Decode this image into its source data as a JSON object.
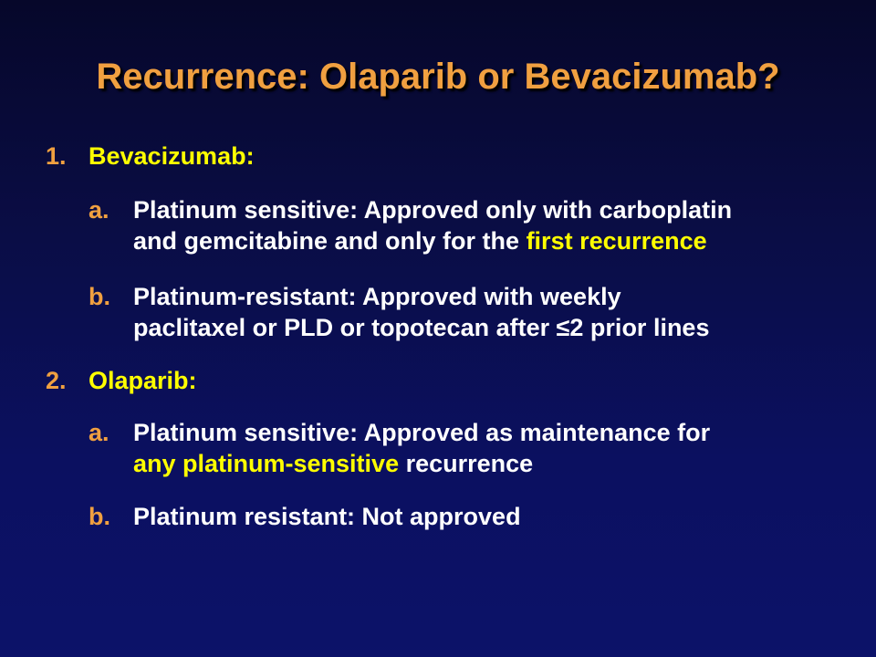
{
  "slide": {
    "title": "Recurrence: Olaparib or Bevacizumab?",
    "colors": {
      "background": "#0b1060",
      "title": "#f0a040",
      "marker": "#f0a040",
      "heading": "#ffff00",
      "body": "#ffffff",
      "highlight": "#ffff00"
    },
    "sections": [
      {
        "number": "1.",
        "heading": "Bevacizumab:",
        "items": [
          {
            "letter": "a.",
            "line1": "Platinum sensitive: Approved only with carboplatin",
            "line2_pre": "and gemcitabine and only for the ",
            "line2_highlight": "first recurrence"
          },
          {
            "letter": "b.",
            "line1": "Platinum-resistant: Approved with weekly",
            "line2": "paclitaxel or PLD or topotecan after ≤2 prior lines"
          }
        ]
      },
      {
        "number": "2.",
        "heading": "Olaparib:",
        "items": [
          {
            "letter": "a.",
            "line1": "Platinum sensitive: Approved as maintenance for",
            "line2_highlight": "any platinum-sensitive",
            "line2_post": " recurrence"
          },
          {
            "letter": "b.",
            "line1": "Platinum resistant: Not approved"
          }
        ]
      }
    ]
  }
}
